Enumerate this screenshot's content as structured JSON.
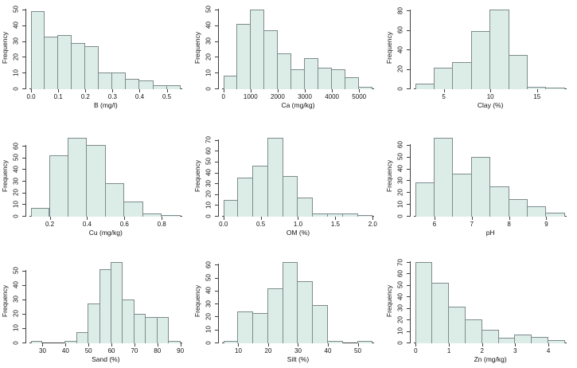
{
  "figure": {
    "background": "#ffffff",
    "bar_fill": "#dcede8",
    "bar_border": "#7e8b8c",
    "axis_color": "#3f3f3f",
    "text_color": "#111111",
    "ylabel": "Frequency"
  },
  "chart_data": [
    {
      "type": "bar",
      "histogram": true,
      "id": "b",
      "xlabel": "B (mg/l)",
      "ylabel": "Frequency",
      "bin_start": 0.0,
      "bin_width": 0.05,
      "values": [
        49,
        33,
        34,
        29,
        27,
        10,
        10,
        6,
        5,
        2,
        2
      ],
      "xtick_values": [
        0.0,
        0.1,
        0.2,
        0.3,
        0.4,
        0.5
      ],
      "xtick_labels": [
        "0.0",
        "0.1",
        "0.2",
        "0.3",
        "0.4",
        "0.5"
      ],
      "yticks": [
        0,
        10,
        20,
        30,
        40,
        50
      ],
      "xlim": [
        0.0,
        0.55
      ],
      "ylim": [
        0,
        50
      ]
    },
    {
      "type": "bar",
      "histogram": true,
      "id": "ca",
      "xlabel": "Ca (mg/kg)",
      "ylabel": "Frequency",
      "bin_start": 0,
      "bin_width": 500,
      "values": [
        8,
        41,
        50,
        37,
        22,
        12,
        19,
        13,
        12,
        7,
        1
      ],
      "xtick_values": [
        0,
        1000,
        2000,
        3000,
        4000,
        5000
      ],
      "xtick_labels": [
        "0",
        "1000",
        "2000",
        "3000",
        "4000",
        "5000"
      ],
      "yticks": [
        0,
        10,
        20,
        30,
        40,
        50
      ],
      "xlim": [
        0,
        5500
      ],
      "ylim": [
        0,
        50
      ]
    },
    {
      "type": "bar",
      "histogram": true,
      "id": "clay",
      "xlabel": "Clay (%)",
      "ylabel": "Frequency",
      "bin_start": 2,
      "bin_width": 2,
      "values": [
        5,
        21,
        27,
        59,
        81,
        34,
        2,
        1
      ],
      "xtick_values": [
        5,
        10,
        15
      ],
      "xtick_labels": [
        "5",
        "10",
        "15"
      ],
      "yticks": [
        0,
        20,
        40,
        60,
        80
      ],
      "xlim": [
        2,
        18
      ],
      "ylim": [
        0,
        81
      ]
    },
    {
      "type": "bar",
      "histogram": true,
      "id": "cu",
      "xlabel": "Cu (mg/kg)",
      "ylabel": "Frequency",
      "bin_start": 0.1,
      "bin_width": 0.1,
      "values": [
        7,
        52,
        67,
        61,
        28,
        12,
        2,
        1
      ],
      "xtick_values": [
        0.2,
        0.4,
        0.6,
        0.8
      ],
      "xtick_labels": [
        "0.2",
        "0.4",
        "0.6",
        "0.8"
      ],
      "yticks": [
        0,
        10,
        20,
        30,
        40,
        50,
        60
      ],
      "xlim": [
        0.1,
        0.9
      ],
      "ylim": [
        0,
        67
      ]
    },
    {
      "type": "bar",
      "histogram": true,
      "id": "om",
      "xlabel": "OM (%)",
      "ylabel": "Frequency",
      "bin_start": 0.0,
      "bin_width": 0.2,
      "values": [
        15,
        35,
        46,
        72,
        37,
        17,
        2,
        2,
        2,
        1
      ],
      "xtick_values": [
        0.0,
        0.5,
        1.0,
        1.5,
        2.0
      ],
      "xtick_labels": [
        "0.0",
        "0.5",
        "1.0",
        "1.5",
        "2.0"
      ],
      "yticks": [
        0,
        10,
        20,
        30,
        40,
        50,
        60,
        70
      ],
      "xlim": [
        0.0,
        2.0
      ],
      "ylim": [
        0,
        72
      ]
    },
    {
      "type": "bar",
      "histogram": true,
      "id": "ph",
      "xlabel": "pH",
      "ylabel": "Frequency",
      "bin_start": 5.5,
      "bin_width": 0.5,
      "values": [
        28,
        66,
        36,
        50,
        25,
        14,
        8,
        3
      ],
      "xtick_values": [
        6,
        7,
        8,
        9
      ],
      "xtick_labels": [
        "6",
        "7",
        "8",
        "9"
      ],
      "yticks": [
        0,
        10,
        20,
        30,
        40,
        50,
        60
      ],
      "xlim": [
        5.5,
        9.5
      ],
      "ylim": [
        0,
        66
      ]
    },
    {
      "type": "bar",
      "histogram": true,
      "id": "sand",
      "xlabel": "Sand (%)",
      "ylabel": "Frequency",
      "bin_start": 25,
      "bin_width": 5,
      "values": [
        1,
        0,
        0,
        1,
        7,
        27,
        51,
        56,
        30,
        20,
        18,
        18,
        1
      ],
      "xtick_values": [
        30,
        40,
        50,
        60,
        70,
        80,
        90
      ],
      "xtick_labels": [
        "30",
        "40",
        "50",
        "60",
        "70",
        "80",
        "90"
      ],
      "yticks": [
        0,
        10,
        20,
        30,
        40,
        50
      ],
      "xlim": [
        25,
        90
      ],
      "ylim": [
        0,
        56
      ]
    },
    {
      "type": "bar",
      "histogram": true,
      "id": "silt",
      "xlabel": "Silt (%)",
      "ylabel": "Frequency",
      "bin_start": 5,
      "bin_width": 5,
      "values": [
        1,
        24,
        23,
        42,
        62,
        47,
        29,
        1,
        0,
        1
      ],
      "xtick_values": [
        10,
        20,
        30,
        40,
        50
      ],
      "xtick_labels": [
        "10",
        "20",
        "30",
        "40",
        "50"
      ],
      "yticks": [
        0,
        10,
        20,
        30,
        40,
        50,
        60
      ],
      "xlim": [
        5,
        55
      ],
      "ylim": [
        0,
        62
      ]
    },
    {
      "type": "bar",
      "histogram": true,
      "id": "zn",
      "xlabel": "Zn (mg/kg)",
      "ylabel": "Frequency",
      "bin_start": 0,
      "bin_width": 0.5,
      "values": [
        70,
        52,
        31,
        20,
        11,
        4,
        7,
        5,
        2
      ],
      "xtick_values": [
        0,
        1,
        2,
        3,
        4
      ],
      "xtick_labels": [
        "0",
        "1",
        "2",
        "3",
        "4"
      ],
      "yticks": [
        0,
        10,
        20,
        30,
        40,
        50,
        60,
        70
      ],
      "xlim": [
        0,
        4.5
      ],
      "ylim": [
        0,
        70
      ]
    }
  ]
}
